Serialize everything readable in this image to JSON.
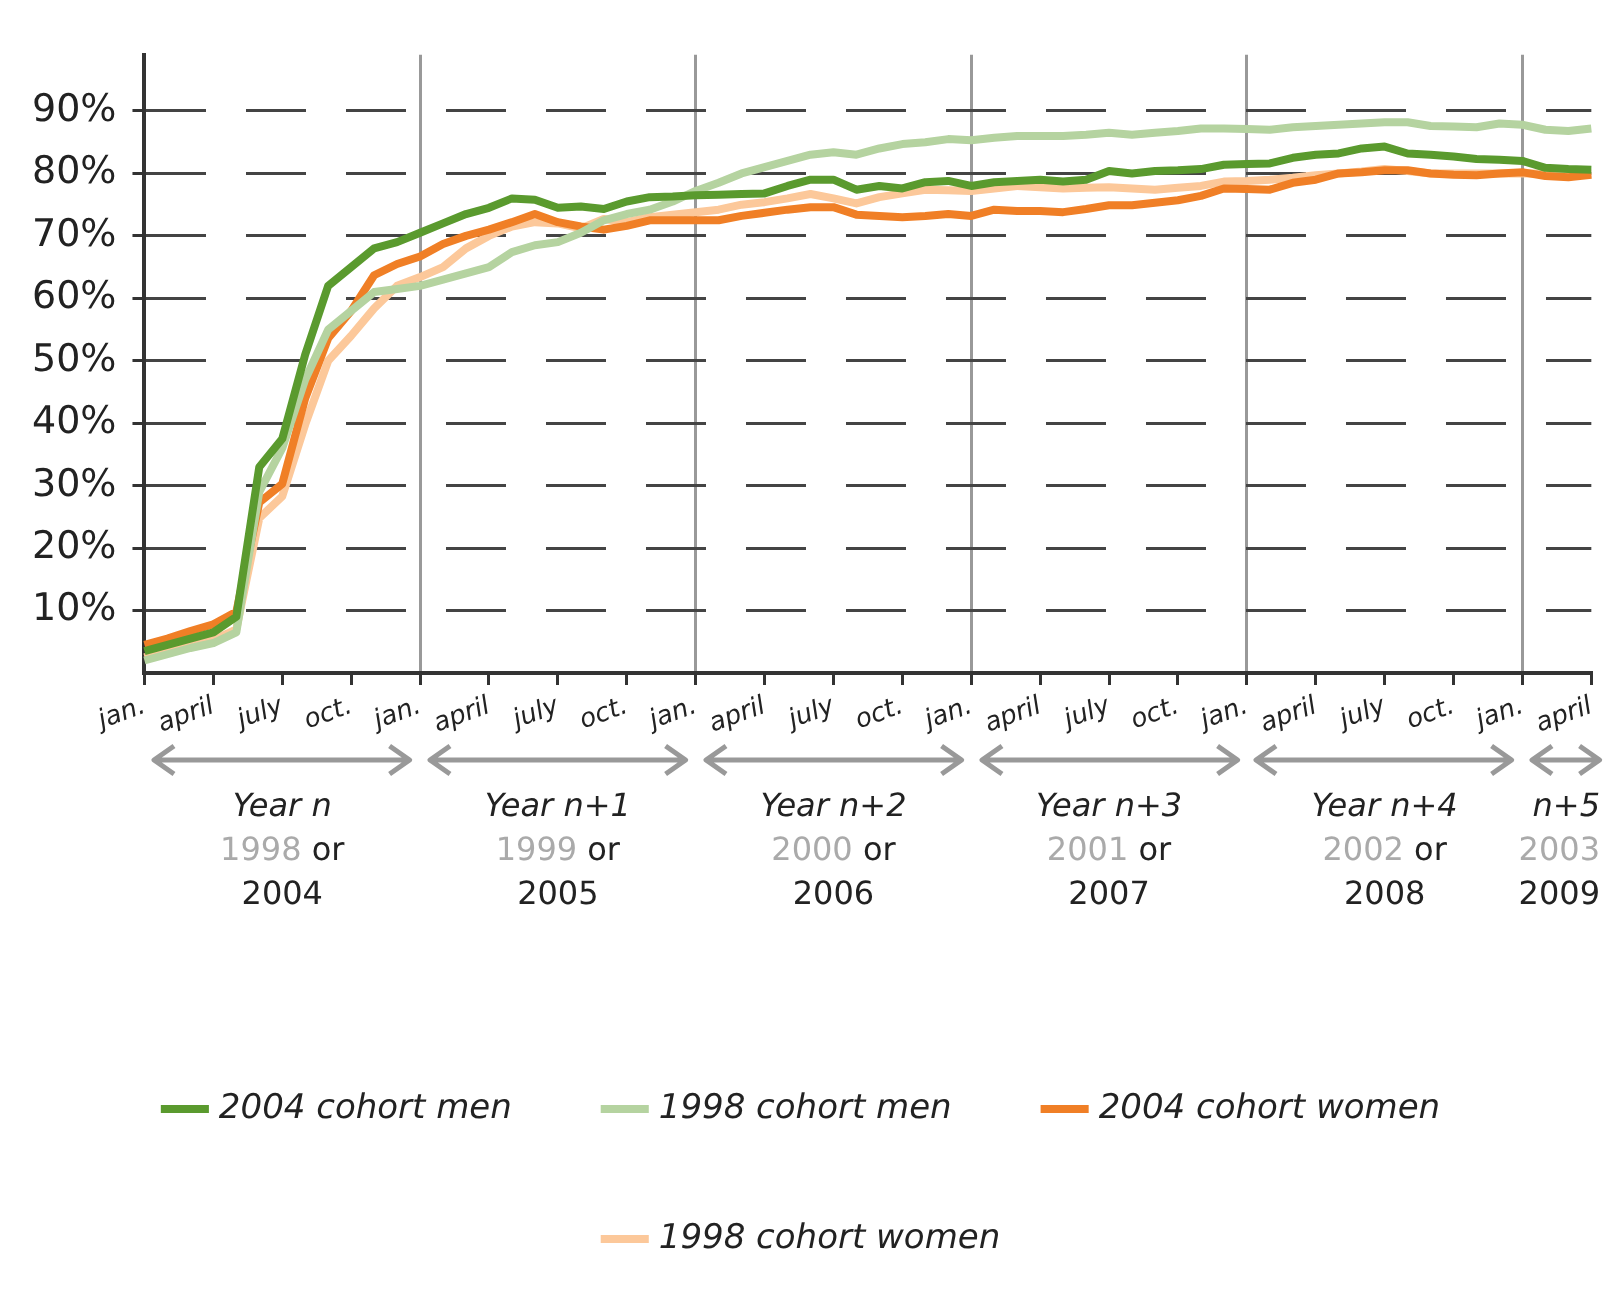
{
  "chart_data": {
    "type": "line",
    "ylim": [
      0,
      99
    ],
    "categories": [
      "jan.",
      null,
      null,
      "april",
      null,
      null,
      "july",
      null,
      null,
      "oct.",
      null,
      null,
      "jan.",
      null,
      null,
      "april",
      null,
      null,
      "july",
      null,
      null,
      "oct.",
      null,
      null,
      "jan.",
      null,
      null,
      "april",
      null,
      null,
      "july",
      null,
      null,
      "oct.",
      null,
      null,
      "jan.",
      null,
      null,
      "april",
      null,
      null,
      "july",
      null,
      null,
      "oct.",
      null,
      null,
      "jan.",
      null,
      null,
      "april",
      null,
      null,
      "july",
      null,
      null,
      "oct.",
      null,
      null,
      "jan.",
      null,
      null,
      "april"
    ],
    "yticks": [
      {
        "value": 10,
        "label": "10%"
      },
      {
        "value": 20,
        "label": "20%"
      },
      {
        "value": 30,
        "label": "30%"
      },
      {
        "value": 40,
        "label": "40%"
      },
      {
        "value": 50,
        "label": "50%"
      },
      {
        "value": 60,
        "label": "60%"
      },
      {
        "value": 70,
        "label": "70%"
      },
      {
        "value": 80,
        "label": "80%"
      },
      {
        "value": 90,
        "label": "90%"
      }
    ],
    "grid": true,
    "legend": "bottom",
    "annotations": [
      "Year n",
      "1998",
      "or",
      "2004",
      "Year n+1",
      "1999",
      "or",
      "2005",
      "Year n+2",
      "2000",
      "or",
      "2006",
      "Year n+3",
      "2001",
      "or",
      "2007",
      "Year n+4",
      "2002",
      "or",
      "2008",
      "n+5",
      "2003",
      "2009"
    ],
    "series": [
      {
        "name": "2004 cohort men",
        "color": "#5a9a2e",
        "values": [
          3.5,
          4.5,
          5.5,
          6.5,
          9,
          33,
          37.5,
          51,
          62,
          65,
          68,
          69,
          70.5,
          72,
          73.5,
          74.5,
          76,
          75.8,
          74.5,
          74.7,
          74.3,
          75.5,
          76.2,
          76.3,
          76.5,
          76.6,
          76.7,
          76.8,
          78,
          79,
          79,
          77.4,
          78,
          77.6,
          78.6,
          78.8,
          78,
          78.6,
          78.8,
          79,
          78.7,
          79,
          80.4,
          80,
          80.4,
          80.5,
          80.7,
          81.4,
          81.5,
          81.6,
          82.5,
          83,
          83.2,
          84,
          84.3,
          83.2,
          83,
          82.7,
          82.3,
          82.2,
          82,
          80.9,
          80.7,
          80.6
        ]
      },
      {
        "name": "1998 cohort men",
        "color": "#b5d3a0",
        "values": [
          2,
          3,
          4,
          4.8,
          6.5,
          29,
          36,
          47,
          55,
          58,
          61,
          61.5,
          62,
          63,
          64,
          65,
          67.4,
          68.5,
          69,
          70.5,
          72.5,
          73.5,
          74.2,
          75.5,
          77.2,
          78.5,
          80,
          81,
          82,
          83,
          83.4,
          83,
          84,
          84.7,
          85,
          85.5,
          85.3,
          85.7,
          86,
          86,
          86,
          86.2,
          86.5,
          86.2,
          86.5,
          86.8,
          87.2,
          87.2,
          87.1,
          87,
          87.4,
          87.6,
          87.8,
          88,
          88.2,
          88.2,
          87.6,
          87.5,
          87.4,
          88,
          87.8,
          87,
          86.8,
          87.2
        ]
      },
      {
        "name": "2004 cohort women",
        "color": "#f07f26",
        "values": [
          4.5,
          5.5,
          6.7,
          7.8,
          9.8,
          27.3,
          30.3,
          44,
          53.6,
          58,
          63.7,
          65.5,
          66.7,
          68.7,
          70,
          71,
          72.2,
          73.5,
          72.2,
          71.5,
          71,
          71.6,
          72.5,
          72.5,
          72.5,
          72.5,
          73.2,
          73.7,
          74.2,
          74.6,
          74.6,
          73.4,
          73.2,
          73,
          73.2,
          73.5,
          73.2,
          74.2,
          74,
          74,
          73.8,
          74.3,
          74.9,
          74.9,
          75.3,
          75.7,
          76.4,
          77.6,
          77.5,
          77.4,
          78.5,
          79,
          80,
          80.2,
          80.5,
          80.5,
          80,
          79.8,
          79.7,
          80,
          80.2,
          79.6,
          79.4,
          79.8
        ]
      },
      {
        "name": "1998 cohort women",
        "color": "#fcc89a",
        "values": [
          2.5,
          3.5,
          4.5,
          5.3,
          7,
          24.8,
          28.3,
          39.8,
          50,
          54,
          58.4,
          62,
          63.4,
          65,
          68,
          70,
          71.5,
          72.2,
          72,
          71.2,
          72.7,
          72.2,
          73,
          73.4,
          73.8,
          74.2,
          75,
          75.4,
          76,
          76.7,
          76,
          75.2,
          76.2,
          76.8,
          77.4,
          77.3,
          77.2,
          77.6,
          78,
          77.8,
          77.6,
          77.7,
          77.8,
          77.6,
          77.4,
          77.7,
          78,
          78.7,
          78.8,
          79,
          79.3,
          79.7,
          80,
          80.3,
          80.7,
          80.4,
          80,
          80,
          80,
          80,
          80,
          80,
          80,
          80
        ]
      }
    ]
  }
}
